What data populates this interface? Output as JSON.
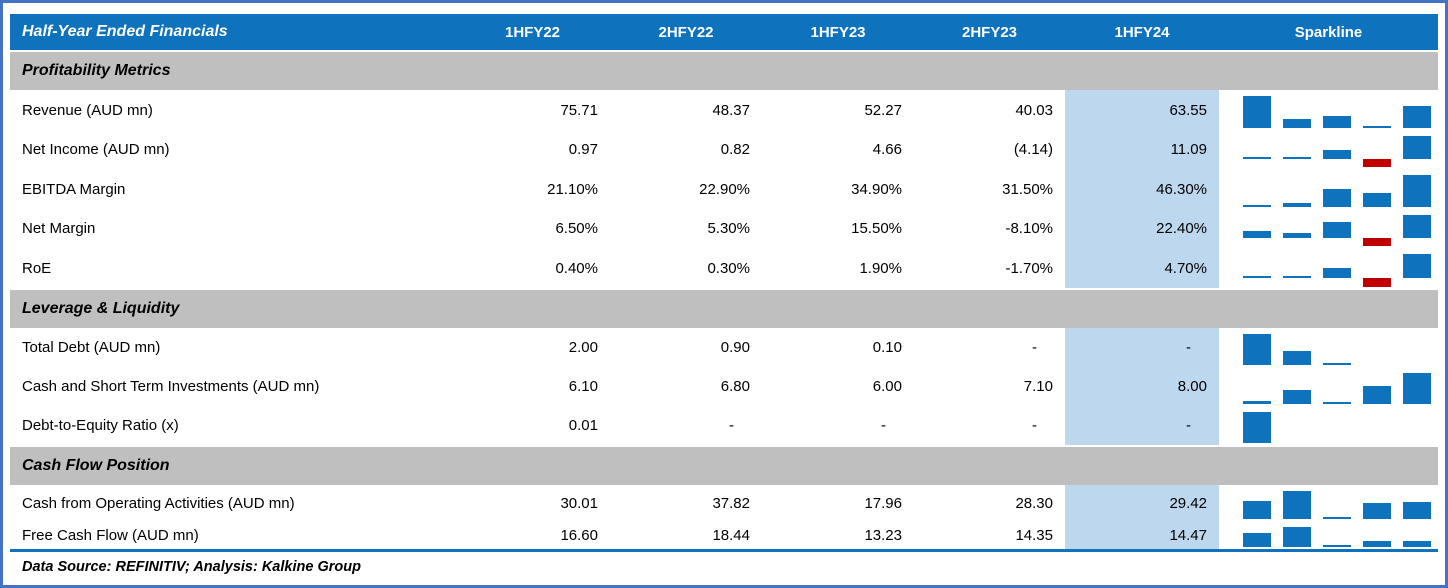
{
  "colors": {
    "frame_blue": "#4472C4",
    "header_blue": "#0E72BC",
    "band_gray": "#BFBFBF",
    "highlight_blue": "#BDD7EE",
    "spark_blue": "#0E72BC",
    "spark_red": "#C00000",
    "text": "#000000"
  },
  "chart_data": {
    "type": "table",
    "title": "Half-Year Ended Financials",
    "columns": [
      "1HFY22",
      "2HFY22",
      "1HFY23",
      "2HFY23",
      "1HFY24"
    ],
    "sparkline_column": "Sparkline",
    "highlighted_column": "1HFY24",
    "sparkline_style": "column, negatives in red, per-row min-max scaling",
    "sections": [
      {
        "name": "Profitability Metrics",
        "rows": [
          {
            "metric": "Revenue (AUD mn)",
            "display": [
              "75.71",
              "48.37",
              "52.27",
              "40.03",
              "63.55"
            ],
            "values": [
              75.71,
              48.37,
              52.27,
              40.03,
              63.55
            ]
          },
          {
            "metric": "Net Income (AUD mn)",
            "display": [
              "0.97",
              "0.82",
              "4.66",
              "(4.14)",
              "11.09"
            ],
            "values": [
              0.97,
              0.82,
              4.66,
              -4.14,
              11.09
            ]
          },
          {
            "metric": "EBITDA Margin",
            "display": [
              "21.10%",
              "22.90%",
              "34.90%",
              "31.50%",
              "46.30%"
            ],
            "values": [
              21.1,
              22.9,
              34.9,
              31.5,
              46.3
            ]
          },
          {
            "metric": "Net Margin",
            "display": [
              "6.50%",
              "5.30%",
              "15.50%",
              "-8.10%",
              "22.40%"
            ],
            "values": [
              6.5,
              5.3,
              15.5,
              -8.1,
              22.4
            ]
          },
          {
            "metric": "RoE",
            "display": [
              "0.40%",
              "0.30%",
              "1.90%",
              "-1.70%",
              "4.70%"
            ],
            "values": [
              0.4,
              0.3,
              1.9,
              -1.7,
              4.7
            ]
          }
        ]
      },
      {
        "name": "Leverage & Liquidity",
        "rows": [
          {
            "metric": "Total Debt (AUD mn)",
            "display": [
              "2.00",
              "0.90",
              "0.10",
              "-",
              "-"
            ],
            "values": [
              2.0,
              0.9,
              0.1,
              null,
              null
            ]
          },
          {
            "metric": "Cash and Short Term Investments (AUD mn)",
            "display": [
              "6.10",
              "6.80",
              "6.00",
              "7.10",
              "8.00"
            ],
            "values": [
              6.1,
              6.8,
              6.0,
              7.1,
              8.0
            ]
          },
          {
            "metric": "Debt-to-Equity Ratio (x)",
            "display": [
              "0.01",
              "-",
              "-",
              "-",
              "-"
            ],
            "values": [
              0.01,
              null,
              null,
              null,
              null
            ]
          }
        ]
      },
      {
        "name": "Cash Flow Position",
        "rows": [
          {
            "metric": "Cash from Operating Activities (AUD mn)",
            "display": [
              "30.01",
              "37.82",
              "17.96",
              "28.30",
              "29.42"
            ],
            "values": [
              30.01,
              37.82,
              17.96,
              28.3,
              29.42
            ]
          },
          {
            "metric": "Free Cash Flow (AUD mn)",
            "display": [
              "16.60",
              "18.44",
              "13.23",
              "14.35",
              "14.47"
            ],
            "values": [
              16.6,
              18.44,
              13.23,
              14.35,
              14.47
            ]
          }
        ]
      }
    ],
    "source_note": "Data Source: REFINITIV; Analysis: Kalkine Group"
  }
}
